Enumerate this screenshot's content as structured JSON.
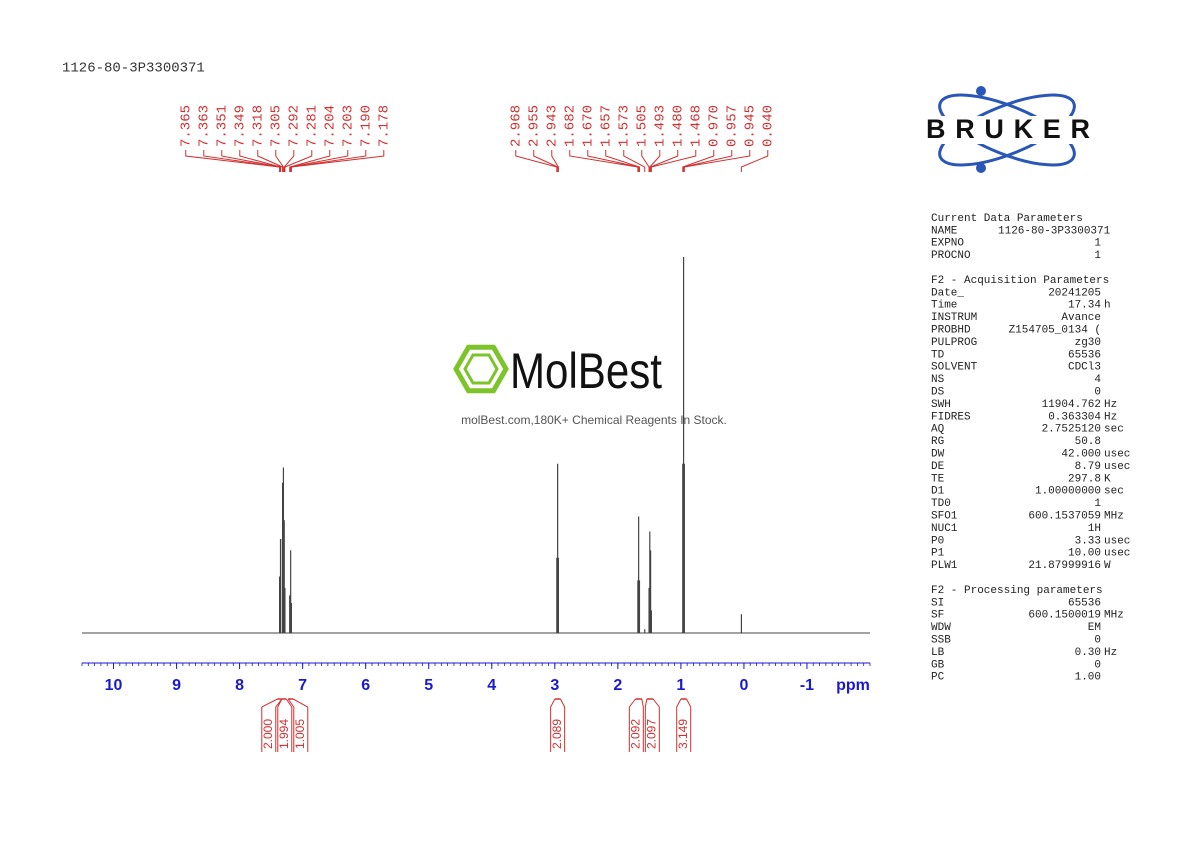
{
  "chart_data": {
    "type": "nmr",
    "title": "1126-80-3P3300371",
    "xlabel": "ppm",
    "xlim": [
      10.5,
      -2.0
    ],
    "xticks": [
      10,
      9,
      8,
      7,
      6,
      5,
      4,
      3,
      2,
      1,
      0,
      -1
    ],
    "xminor": 10,
    "ylim": [
      0,
      100
    ],
    "axis_color": "#1a1acc",
    "label_color": "#d03030",
    "line_color": "#444444",
    "peaks": [
      {
        "value": 7.365,
        "label": "7.365",
        "height": 15
      },
      {
        "value": 7.363,
        "label": "7.363",
        "height": 15
      },
      {
        "value": 7.351,
        "label": "7.351",
        "height": 25
      },
      {
        "value": 7.349,
        "label": "7.349",
        "height": 25
      },
      {
        "value": 7.318,
        "label": "7.318",
        "height": 40
      },
      {
        "value": 7.305,
        "label": "7.305",
        "height": 44
      },
      {
        "value": 7.292,
        "label": "7.292",
        "height": 30
      },
      {
        "value": 7.281,
        "label": "7.281",
        "height": 12
      },
      {
        "value": 7.204,
        "label": "7.204",
        "height": 10
      },
      {
        "value": 7.203,
        "label": "7.203",
        "height": 10
      },
      {
        "value": 7.19,
        "label": "7.190",
        "height": 22
      },
      {
        "value": 7.178,
        "label": "7.178",
        "height": 8
      },
      {
        "value": 2.968,
        "label": "2.968",
        "height": 20
      },
      {
        "value": 2.955,
        "label": "2.955",
        "height": 45
      },
      {
        "value": 2.943,
        "label": "2.943",
        "height": 20
      },
      {
        "value": 1.682,
        "label": "1.682",
        "height": 14
      },
      {
        "value": 1.67,
        "label": "1.670",
        "height": 31
      },
      {
        "value": 1.657,
        "label": "1.657",
        "height": 14
      },
      {
        "value": 1.573,
        "label": "1.573",
        "height": 1
      },
      {
        "value": 1.505,
        "label": "1.505",
        "height": 12
      },
      {
        "value": 1.493,
        "label": "1.493",
        "height": 27
      },
      {
        "value": 1.48,
        "label": "1.480",
        "height": 22
      },
      {
        "value": 1.468,
        "label": "1.468",
        "height": 6
      },
      {
        "value": 0.97,
        "label": "0.970",
        "height": 45
      },
      {
        "value": 0.957,
        "label": "0.957",
        "height": 100
      },
      {
        "value": 0.945,
        "label": "0.945",
        "height": 45
      },
      {
        "value": 0.04,
        "label": "0.040",
        "height": 5
      }
    ],
    "integrals": [
      {
        "from": 7.4,
        "to": 7.33,
        "value": 2,
        "label": "2.000"
      },
      {
        "from": 7.33,
        "to": 7.26,
        "value": 1.994,
        "label": "1.994"
      },
      {
        "from": 7.23,
        "to": 7.15,
        "value": 1.005,
        "label": "1.005"
      },
      {
        "from": 3.0,
        "to": 2.91,
        "value": 2.089,
        "label": "2.089"
      },
      {
        "from": 1.72,
        "to": 1.62,
        "value": 2.092,
        "label": "2.092"
      },
      {
        "from": 1.54,
        "to": 1.44,
        "value": 2.097,
        "label": "2.097"
      },
      {
        "from": 1.0,
        "to": 0.91,
        "value": 3.149,
        "label": "3.149"
      }
    ]
  },
  "logo": {
    "text": "BRUKER"
  },
  "watermark": {
    "name": "MolBest",
    "tagline": "molBest.com,180K+ Chemical Reagents In Stock."
  },
  "parameters": [
    {
      "title": "Current Data Parameters",
      "rows": [
        [
          "NAME",
          "1126-80-3P3300371"
        ],
        [
          "EXPNO",
          "1"
        ],
        [
          "PROCNO",
          "1"
        ]
      ]
    },
    {
      "title": "F2 - Acquisition Parameters",
      "rows": [
        [
          "Date_",
          "20241205"
        ],
        [
          "Time",
          "17.34",
          "h"
        ],
        [
          "INSTRUM",
          "Avance"
        ],
        [
          "PROBHD",
          "Z154705_0134 ("
        ],
        [
          "PULPROG",
          "zg30"
        ],
        [
          "TD",
          "65536"
        ],
        [
          "SOLVENT",
          "CDCl3"
        ],
        [
          "NS",
          "4"
        ],
        [
          "DS",
          "0"
        ],
        [
          "SWH",
          "11904.762",
          "Hz"
        ],
        [
          "FIDRES",
          "0.363304",
          "Hz"
        ],
        [
          "AQ",
          "2.7525120",
          "sec"
        ],
        [
          "RG",
          "50.8"
        ],
        [
          "DW",
          "42.000",
          "usec"
        ],
        [
          "DE",
          "8.79",
          "usec"
        ],
        [
          "TE",
          "297.8",
          "K"
        ],
        [
          "D1",
          "1.00000000",
          "sec"
        ],
        [
          "TD0",
          "1"
        ],
        [
          "SFO1",
          "600.1537059",
          "MHz"
        ],
        [
          "NUC1",
          "1H"
        ],
        [
          "P0",
          "3.33",
          "usec"
        ],
        [
          "P1",
          "10.00",
          "usec"
        ],
        [
          "PLW1",
          "21.87999916",
          "W"
        ]
      ]
    },
    {
      "title": "F2 - Processing parameters",
      "rows": [
        [
          "SI",
          "65536"
        ],
        [
          "SF",
          "600.1500019",
          "MHz"
        ],
        [
          "WDW",
          "EM"
        ],
        [
          "SSB",
          "0"
        ],
        [
          "LB",
          "0.30",
          "Hz"
        ],
        [
          "GB",
          "0"
        ],
        [
          "PC",
          "1.00"
        ]
      ]
    }
  ]
}
